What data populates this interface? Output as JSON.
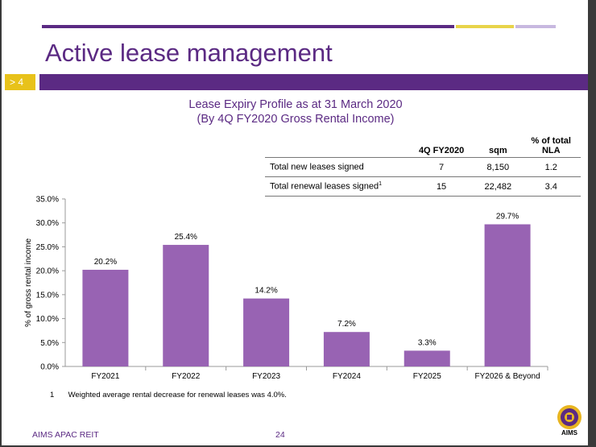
{
  "slide_title": "Active lease management",
  "section_number": "> 4",
  "colors": {
    "purple": "#5b2a83",
    "bar_purple": "#9863b3",
    "gold": "#e8d44a",
    "lavender": "#c8b8e0"
  },
  "chart_data": {
    "type": "bar",
    "title": "Lease Expiry Profile as at 31 March 2020",
    "subtitle": "(By 4Q FY2020 Gross Rental Income)",
    "xlabel": "",
    "ylabel": "% of gross rental income",
    "categories": [
      "FY2021",
      "FY2022",
      "FY2023",
      "FY2024",
      "FY2025",
      "FY2026 & Beyond"
    ],
    "values": [
      20.2,
      25.4,
      14.2,
      7.2,
      3.3,
      29.7
    ],
    "data_labels": [
      "20.2%",
      "25.4%",
      "14.2%",
      "7.2%",
      "3.3%",
      "29.7%"
    ],
    "ylim": [
      0,
      35
    ],
    "yticks": [
      0,
      5,
      10,
      15,
      20,
      25,
      30,
      35
    ],
    "ytick_labels": [
      "0.0%",
      "5.0%",
      "10.0%",
      "15.0%",
      "20.0%",
      "25.0%",
      "30.0%",
      "35.0%"
    ],
    "grid": false
  },
  "table": {
    "headers": [
      "",
      "4Q FY2020",
      "sqm",
      "% of total NLA"
    ],
    "header_nla_line1": "% of total",
    "header_nla_line2": "NLA",
    "rows": [
      {
        "label": "Total new leases signed",
        "sup": "",
        "fy": "7",
        "sqm": "8,150",
        "nla": "1.2"
      },
      {
        "label": "Total renewal leases signed",
        "sup": "1",
        "fy": "15",
        "sqm": "22,482",
        "nla": "3.4"
      }
    ]
  },
  "footnote": {
    "number": "1",
    "text": "Weighted average rental decrease for renewal leases was 4.0%."
  },
  "footer": {
    "company": "AIMS APAC REIT",
    "page": "24",
    "logo_text": "AIMS"
  }
}
